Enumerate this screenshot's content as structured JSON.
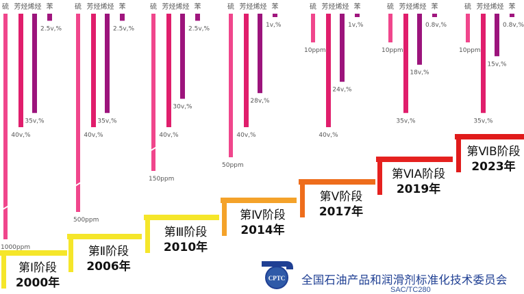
{
  "chart_data": {
    "type": "bar",
    "categories": [
      "硫",
      "芳烃",
      "烯烃",
      "苯"
    ],
    "colors": [
      "#f0468c",
      "#e01e6c",
      "#9c147c",
      "#a0167e"
    ],
    "stages": [
      {
        "stage": "第Ⅰ阶段",
        "year": "2000年",
        "step_color": "#f5e62a",
        "values": [
          1000,
          40,
          35,
          2.5
        ],
        "labels": [
          "1000ppm",
          "40v,%",
          "35v,%",
          "2.5v,%"
        ],
        "sulfur_axis_break": true
      },
      {
        "stage": "第Ⅱ阶段",
        "year": "2006年",
        "step_color": "#f5e62a",
        "values": [
          500,
          40,
          35,
          2.5
        ],
        "labels": [
          "500ppm",
          "40v,%",
          "35v,%",
          "2.5v,%"
        ],
        "sulfur_axis_break": true
      },
      {
        "stage": "第Ⅲ阶段",
        "year": "2010年",
        "step_color": "#f5e62a",
        "values": [
          150,
          40,
          30,
          2.5
        ],
        "labels": [
          "150ppm",
          "40v,%",
          "30v,%",
          "2.5v,%"
        ],
        "sulfur_axis_break": true
      },
      {
        "stage": "第Ⅳ阶段",
        "year": "2014年",
        "step_color": "#f4a22a",
        "values": [
          50,
          40,
          28,
          1
        ],
        "labels": [
          "50ppm",
          "40v,%",
          "28v,%",
          "1v,%"
        ],
        "sulfur_axis_break": false
      },
      {
        "stage": "第Ⅴ阶段",
        "year": "2017年",
        "step_color": "#ee6d1c",
        "values": [
          10,
          40,
          24,
          1
        ],
        "labels": [
          "10ppm",
          "40v,%",
          "24v,%",
          "1v,%"
        ],
        "sulfur_axis_break": false
      },
      {
        "stage": "第ⅥA阶段",
        "year": "2019年",
        "step_color": "#e5211f",
        "values": [
          10,
          35,
          18,
          0.8
        ],
        "labels": [
          "10ppm",
          "35v,%",
          "18v,%",
          "0.8v,%"
        ],
        "sulfur_axis_break": false
      },
      {
        "stage": "第ⅥB阶段",
        "year": "2023年",
        "step_color": "#e01b1b",
        "values": [
          10,
          35,
          15,
          0.8
        ],
        "labels": [
          "10ppm",
          "35v,%",
          "15v,%",
          "0.8v,%"
        ],
        "sulfur_axis_break": false
      }
    ]
  },
  "footer": {
    "logo_text": "CPTC",
    "org_name": "全国石油产品和润滑剂标准化技术委员会",
    "org_code": "SAC/TC280"
  }
}
